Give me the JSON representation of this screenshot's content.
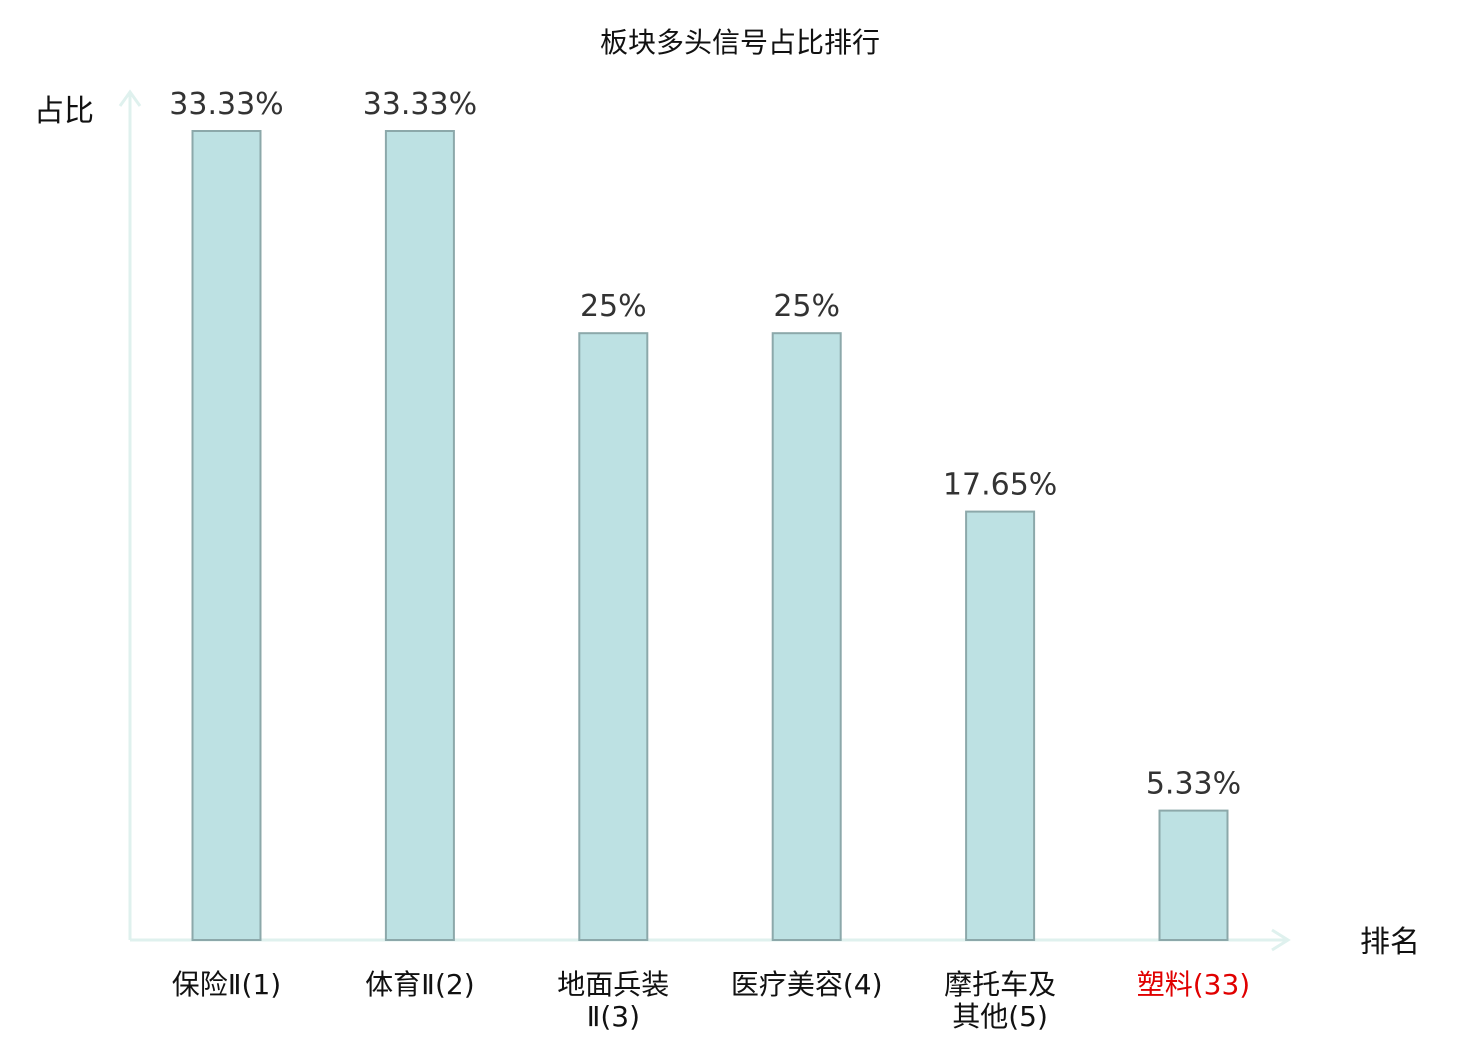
{
  "chart_data": {
    "type": "bar",
    "title": "板块多头信号占比排行",
    "ylabel": "占比",
    "xlabel": "排名",
    "grid": false,
    "ylim": [
      0,
      35
    ],
    "categories": [
      {
        "lines": [
          "保险Ⅱ(1)"
        ]
      },
      {
        "lines": [
          "体育Ⅱ(2)"
        ]
      },
      {
        "lines": [
          "地面兵装",
          "Ⅱ(3)"
        ]
      },
      {
        "lines": [
          "医疗美容(4)"
        ]
      },
      {
        "lines": [
          "摩托车及",
          "其他(5)"
        ]
      },
      {
        "lines": [
          "塑料(33)"
        ]
      }
    ],
    "values": [
      33.33,
      33.33,
      25,
      25,
      17.65,
      5.33
    ],
    "value_labels": [
      "33.33%",
      "33.33%",
      "25%",
      "25%",
      "17.65%",
      "5.33%"
    ],
    "highlight_index": 5,
    "colors": {
      "bar_fill": "#bde1e3",
      "bar_stroke": "#8ca8aa",
      "axis": "#dff1ee",
      "highlight_label": "#e00000",
      "label": "#111111"
    }
  }
}
